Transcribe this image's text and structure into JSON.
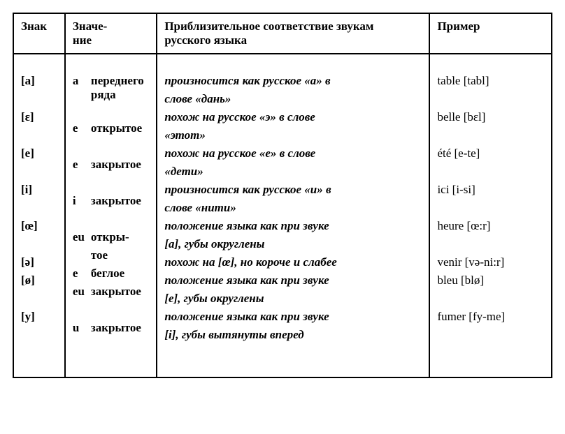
{
  "headers": {
    "sign": "Знак",
    "meaning": "Значе-\nние",
    "correspondence": "Приблизительное соответствие звукам русского языка",
    "example": "Пример"
  },
  "rows": [
    {
      "sign": "[a]",
      "vowel": "a",
      "kind": "переднего ряда",
      "desc": "произносится как русское «а» в слове «дань»",
      "example": "table [tabl]"
    },
    {
      "sign": "[ɛ]",
      "vowel": "e",
      "kind": "открытое",
      "desc": "похож на русское «э» в слове «этот»",
      "example": "belle [bɛl]"
    },
    {
      "sign": "[e]",
      "vowel": "e",
      "kind": "закрытое",
      "desc": "похож на русское «е» в слове «дети»",
      "example": "été [e-te]"
    },
    {
      "sign": "[i]",
      "vowel": "i",
      "kind": "закрытое",
      "desc": "произносится как русское «и» в слове «нити»",
      "example": "ici [i-si]"
    },
    {
      "sign": "[œ]",
      "vowel": "eu",
      "kind": "откры-\nтое",
      "desc": "положение языка как при звуке [a], губы округлены",
      "example": "heure [œ:r]"
    },
    {
      "sign": "[ə]",
      "vowel": "e",
      "kind": "беглое",
      "desc": "похож на [œ], но короче и слабее",
      "example": "venir [və-ni:r]"
    },
    {
      "sign": "[ø]",
      "vowel": "eu",
      "kind": "закрытое",
      "desc": "положение языка как при звуке [e], губы округлены",
      "example": "bleu [blø]"
    },
    {
      "sign": "[y]",
      "vowel": "u",
      "kind": "закрытое",
      "desc": "положение языка как при звуке [i], губы вытянуты вперед",
      "example": "fumer [fy-me]"
    }
  ],
  "layout": {
    "col_sign_width": 72,
    "col_meaning_width": 128,
    "col_desc_width": 380,
    "col_example_width": 170
  }
}
